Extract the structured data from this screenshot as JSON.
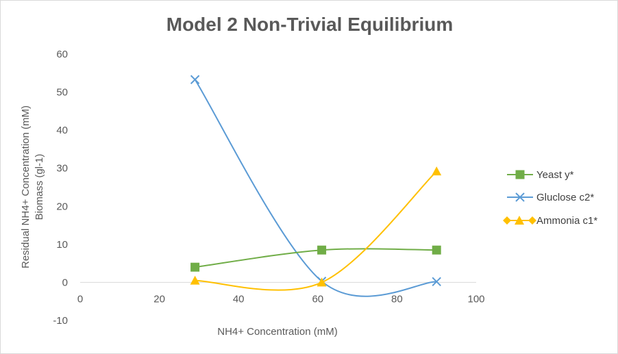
{
  "chart_data": {
    "type": "line",
    "title": "Model 2 Non-Trivial Equilibrium",
    "xlabel": "NH4+ Concentration (mM)",
    "ylabel_lines": [
      "Residual NH4+ Concentration (mM)",
      "Biomass (gl-1)"
    ],
    "xlim": [
      0,
      100
    ],
    "ylim": [
      -10,
      60
    ],
    "x_ticks": [
      "0",
      "20",
      "40",
      "60",
      "80",
      "100"
    ],
    "y_ticks": [
      "-10",
      "0",
      "10",
      "20",
      "30",
      "40",
      "50",
      "60"
    ],
    "grid": false,
    "smooth": true,
    "legend_position": "right",
    "series": [
      {
        "name": "Yeast y*",
        "color": "#70ad47",
        "marker": "square",
        "x": [
          29,
          61,
          90
        ],
        "y": [
          4,
          8.5,
          8.5
        ]
      },
      {
        "name": "Gluclose c2*",
        "color": "#5b9bd5",
        "marker": "x",
        "x": [
          29,
          61,
          90
        ],
        "y": [
          53.3,
          0.3,
          0.2
        ]
      },
      {
        "name": "Ammonia c1*",
        "color": "#ffc000",
        "marker": "triangle",
        "x": [
          29,
          61,
          90
        ],
        "y": [
          0.5,
          0,
          29.2
        ]
      }
    ]
  }
}
